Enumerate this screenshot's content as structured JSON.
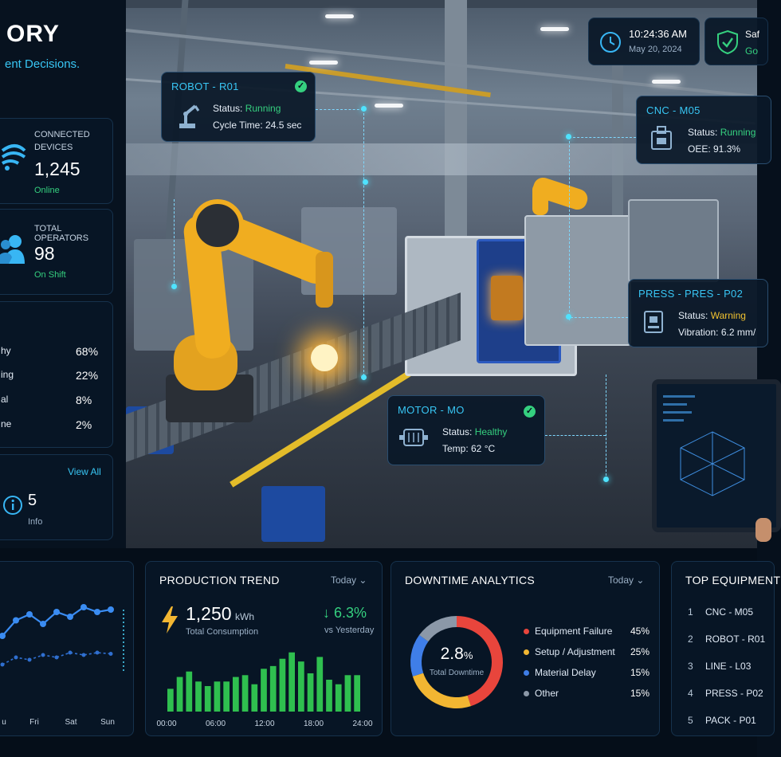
{
  "header": {
    "title_fragment": "ORY",
    "subtitle_fragment": "ent Decisions."
  },
  "clock": {
    "time": "10:24:36 AM",
    "date": "May 20, 2024"
  },
  "safety": {
    "label": "Saf",
    "status": "Go"
  },
  "stats": {
    "devices": {
      "label_line1": "CONNECTED",
      "label_line2": "DEVICES",
      "value": "1,245",
      "status": "Online"
    },
    "operators": {
      "label": "TOTAL OPERATORS",
      "value": "98",
      "status": "On Shift"
    }
  },
  "health": [
    {
      "label": "hy",
      "value": "68%"
    },
    {
      "label": "ing",
      "value": "22%"
    },
    {
      "label": "al",
      "value": "8%"
    },
    {
      "label": "ne",
      "value": "2%"
    }
  ],
  "alerts": {
    "view_all": "View All",
    "info_count": "5",
    "info_label": "Info"
  },
  "callouts": {
    "robot": {
      "title": "ROBOT - R01",
      "status_label": "Status: ",
      "status": "Running",
      "cycle": "Cycle Time: 24.5 sec"
    },
    "cnc": {
      "title": "CNC - M05",
      "status_label": "Status: ",
      "status": "Running",
      "oee": "OEE: 91.3%"
    },
    "press": {
      "title": "PRESS - PRES - P02",
      "status_label": "Status: ",
      "status": "Warning",
      "vibration": "Vibration: 6.2 mm/"
    },
    "motor": {
      "title": "MOTOR - MO",
      "status_label": "Status: ",
      "status": "Healthy",
      "temp": "Temp: 62 °C"
    }
  },
  "weekly_chart": {
    "days": [
      "u",
      "Fri",
      "Sat",
      "Sun"
    ]
  },
  "production": {
    "title": "PRODUCTION TREND",
    "period": "Today",
    "value": "1,250",
    "unit": "kWh",
    "sub": "Total Consumption",
    "change": "↓ 6.3%",
    "change_sub": "vs Yesterday"
  },
  "downtime": {
    "title": "DOWNTIME ANALYTICS",
    "period": "Today",
    "center_value": "2.8",
    "center_unit": "%",
    "center_label": "Total Downtime",
    "items": [
      {
        "label": "Equipment Failure",
        "value": "45%",
        "color": "#e8453c"
      },
      {
        "label": "Setup / Adjustment",
        "value": "25%",
        "color": "#f2b632"
      },
      {
        "label": "Material Delay",
        "value": "15%",
        "color": "#3f7ee8"
      },
      {
        "label": "Other",
        "value": "15%",
        "color": "#8b98a8"
      }
    ]
  },
  "top_equipment": {
    "title": "TOP EQUIPMENT",
    "items": [
      {
        "rank": "1",
        "name": "CNC - M05"
      },
      {
        "rank": "2",
        "name": "ROBOT - R01"
      },
      {
        "rank": "3",
        "name": "LINE - L03"
      },
      {
        "rank": "4",
        "name": "PRESS - P02"
      },
      {
        "rank": "5",
        "name": "PACK - P01"
      }
    ]
  },
  "chart_data": [
    {
      "type": "bar",
      "title": "PRODUCTION TREND",
      "x_ticks": [
        "00:00",
        "06:00",
        "12:00",
        "18:00",
        "24:00"
      ],
      "values": [
        25,
        38,
        44,
        33,
        28,
        33,
        33,
        38,
        40,
        30,
        47,
        50,
        58,
        65,
        55,
        42,
        60,
        35,
        30,
        40,
        40
      ],
      "ylim": [
        0,
        70
      ],
      "color": "#2fbf4f"
    },
    {
      "type": "line",
      "x_ticks": [
        "u",
        "Fri",
        "Sat",
        "Sun"
      ],
      "series": [
        {
          "values": [
            42,
            55,
            60,
            52,
            62,
            58,
            66,
            62,
            64
          ],
          "color": "#3a8cf2"
        },
        {
          "values": [
            18,
            24,
            22,
            26,
            24,
            28,
            26,
            28,
            27
          ],
          "color": "#2f6fd0"
        }
      ],
      "ylim": [
        0,
        80
      ]
    },
    {
      "type": "pie",
      "title": "DOWNTIME ANALYTICS",
      "labels": [
        "Equipment Failure",
        "Setup / Adjustment",
        "Material Delay",
        "Other"
      ],
      "values": [
        45,
        25,
        15,
        15
      ],
      "colors": [
        "#e8453c",
        "#f2b632",
        "#3f7ee8",
        "#8b98a8"
      ]
    }
  ]
}
